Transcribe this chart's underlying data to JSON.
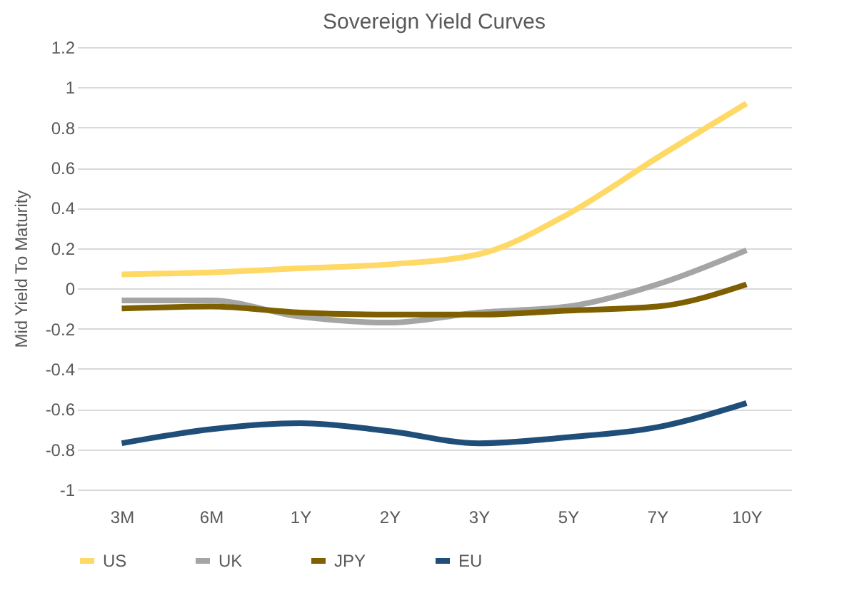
{
  "chart_data": {
    "type": "line",
    "title": "Sovereign Yield Curves",
    "ylabel": "Mid Yield To Maturity",
    "categories": [
      "3M",
      "6M",
      "1Y",
      "2Y",
      "3Y",
      "5Y",
      "7Y",
      "10Y"
    ],
    "series": [
      {
        "name": "US",
        "color": "#ffd966",
        "values": [
          0.07,
          0.08,
          0.1,
          0.12,
          0.17,
          0.37,
          0.65,
          0.92
        ]
      },
      {
        "name": "UK",
        "color": "#a5a5a5",
        "values": [
          -0.06,
          -0.06,
          -0.14,
          -0.17,
          -0.12,
          -0.09,
          0.02,
          0.19
        ]
      },
      {
        "name": "JPY",
        "color": "#7f6000",
        "values": [
          -0.1,
          -0.09,
          -0.12,
          -0.13,
          -0.13,
          -0.11,
          -0.09,
          0.02
        ]
      },
      {
        "name": "EU",
        "color": "#1f4e79",
        "values": [
          -0.77,
          -0.7,
          -0.67,
          -0.71,
          -0.77,
          -0.74,
          -0.69,
          -0.57
        ]
      }
    ],
    "ylim": [
      -1,
      1.2
    ],
    "yticks": [
      -1,
      -0.8,
      -0.6,
      -0.4,
      -0.2,
      0,
      0.2,
      0.4,
      0.6,
      0.8,
      1,
      1.2
    ],
    "grid": "y",
    "legend": "bottom",
    "marker": "none",
    "line_style": "solid"
  }
}
